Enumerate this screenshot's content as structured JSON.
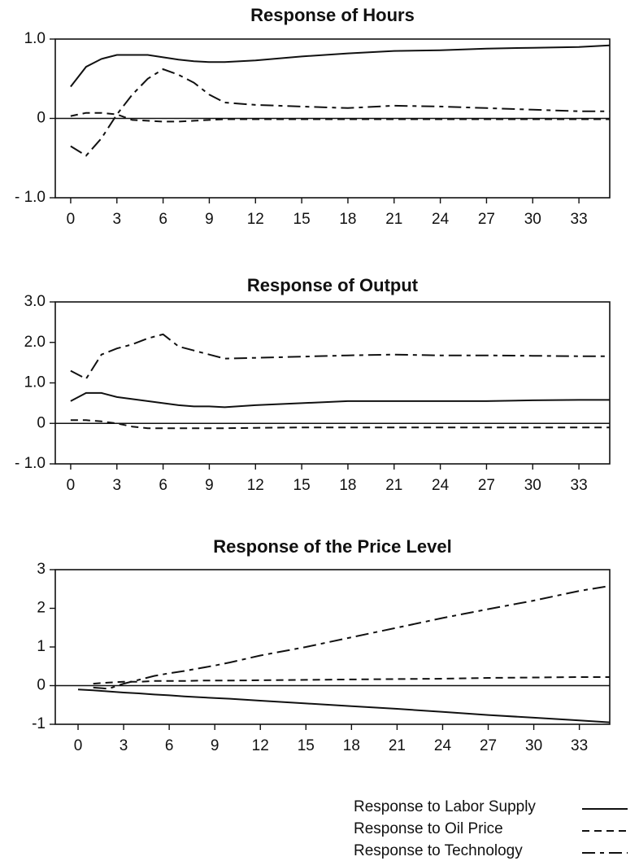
{
  "chart_data": [
    {
      "type": "line",
      "title": "Response of Hours",
      "x": [
        0,
        1,
        2,
        3,
        4,
        5,
        6,
        7,
        8,
        9,
        10,
        12,
        15,
        18,
        21,
        24,
        27,
        30,
        33,
        35
      ],
      "series": [
        {
          "name": "Response to Labor Supply",
          "color": "#111111",
          "dash": "solid",
          "values": [
            0.4,
            0.65,
            0.75,
            0.8,
            0.8,
            0.8,
            0.77,
            0.74,
            0.72,
            0.71,
            0.71,
            0.73,
            0.78,
            0.82,
            0.85,
            0.86,
            0.88,
            0.89,
            0.9,
            0.92
          ]
        },
        {
          "name": "Response to Oil Price",
          "color": "#111111",
          "dash": "dashed",
          "values": [
            0.03,
            0.07,
            0.07,
            0.05,
            -0.02,
            -0.03,
            -0.04,
            -0.04,
            -0.03,
            -0.02,
            -0.01,
            -0.01,
            -0.01,
            -0.01,
            -0.01,
            -0.01,
            -0.01,
            -0.01,
            -0.01,
            -0.01
          ]
        },
        {
          "name": "Response to Technology",
          "color": "#111111",
          "dash": "dashdot",
          "values": [
            -0.35,
            -0.47,
            -0.25,
            0.05,
            0.3,
            0.5,
            0.62,
            0.55,
            0.45,
            0.3,
            0.2,
            0.17,
            0.15,
            0.13,
            0.16,
            0.15,
            0.13,
            0.11,
            0.09,
            0.09
          ]
        }
      ],
      "xlim": [
        -1,
        35
      ],
      "xticks": [
        0,
        3,
        6,
        9,
        12,
        15,
        18,
        21,
        24,
        27,
        30,
        33
      ],
      "ylim": [
        -1,
        1
      ],
      "yticks": [
        {
          "value": -1,
          "label": "- 1.0"
        },
        0,
        {
          "value": 1,
          "label": "1.0"
        }
      ],
      "zero_line": true
    },
    {
      "type": "line",
      "title": "Response of Output",
      "x": [
        0,
        1,
        2,
        3,
        4,
        5,
        6,
        7,
        8,
        9,
        10,
        12,
        15,
        18,
        21,
        24,
        27,
        30,
        33,
        35
      ],
      "series": [
        {
          "color": "#111111",
          "dash": "solid",
          "values": [
            0.55,
            0.75,
            0.75,
            0.65,
            0.6,
            0.55,
            0.5,
            0.45,
            0.42,
            0.42,
            0.4,
            0.45,
            0.5,
            0.55,
            0.55,
            0.55,
            0.55,
            0.57,
            0.58,
            0.58
          ]
        },
        {
          "color": "#111111",
          "dash": "dashed",
          "values": [
            0.08,
            0.08,
            0.05,
            0.0,
            -0.08,
            -0.12,
            -0.12,
            -0.12,
            -0.12,
            -0.12,
            -0.12,
            -0.11,
            -0.1,
            -0.1,
            -0.1,
            -0.1,
            -0.1,
            -0.1,
            -0.1,
            -0.1
          ]
        },
        {
          "color": "#111111",
          "dash": "dashdot",
          "values": [
            1.3,
            1.1,
            1.7,
            1.85,
            1.95,
            2.1,
            2.2,
            1.9,
            1.8,
            1.7,
            1.6,
            1.62,
            1.65,
            1.68,
            1.7,
            1.68,
            1.68,
            1.67,
            1.66,
            1.66
          ]
        }
      ],
      "xlim": [
        -1,
        35
      ],
      "xticks": [
        0,
        3,
        6,
        9,
        12,
        15,
        18,
        21,
        24,
        27,
        30,
        33
      ],
      "ylim": [
        -1,
        3
      ],
      "yticks": [
        {
          "value": -1,
          "label": "- 1.0"
        },
        0,
        {
          "value": 1,
          "label": "1.0"
        },
        {
          "value": 2,
          "label": "2.0"
        },
        {
          "value": 3,
          "label": "3.0"
        }
      ],
      "zero_line": true
    },
    {
      "type": "line",
      "title": "Response of the Price Level",
      "x": [
        0,
        1,
        2,
        3,
        4,
        5,
        6,
        7,
        8,
        9,
        10,
        12,
        15,
        18,
        21,
        24,
        27,
        30,
        33,
        35
      ],
      "series": [
        {
          "color": "#111111",
          "dash": "solid",
          "values": [
            -0.1,
            -0.12,
            -0.15,
            -0.18,
            -0.2,
            -0.23,
            -0.25,
            -0.28,
            -0.3,
            -0.32,
            -0.34,
            -0.39,
            -0.46,
            -0.53,
            -0.6,
            -0.68,
            -0.76,
            -0.83,
            -0.9,
            -0.95
          ]
        },
        {
          "color": "#111111",
          "dash": "dashed",
          "values": [
            null,
            0.05,
            0.08,
            0.1,
            0.1,
            0.12,
            0.12,
            0.12,
            0.13,
            0.13,
            0.13,
            0.14,
            0.15,
            0.16,
            0.17,
            0.18,
            0.2,
            0.21,
            0.22,
            0.22
          ]
        },
        {
          "color": "#111111",
          "dash": "dashdot",
          "values": [
            null,
            -0.05,
            -0.08,
            0.05,
            0.15,
            0.25,
            0.32,
            0.38,
            0.45,
            0.52,
            0.6,
            0.78,
            1.0,
            1.25,
            1.5,
            1.75,
            1.98,
            2.2,
            2.45,
            2.58
          ]
        }
      ],
      "xlim": [
        -1.5,
        35
      ],
      "xticks": [
        0,
        3,
        6,
        9,
        12,
        15,
        18,
        21,
        24,
        27,
        30,
        33
      ],
      "ylim": [
        -1,
        3
      ],
      "yticks": [
        {
          "value": -1,
          "label": "-1"
        },
        0,
        1,
        2,
        3
      ],
      "zero_line": true
    }
  ]
}
